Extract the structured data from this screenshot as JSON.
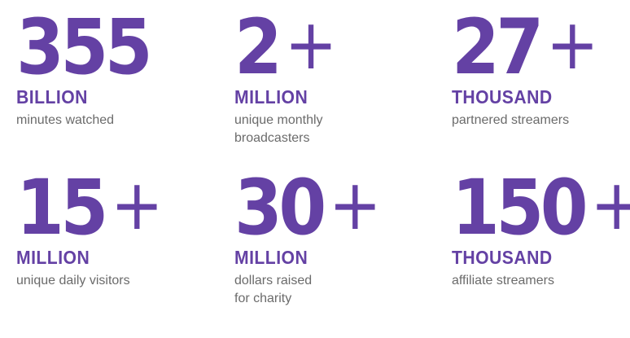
{
  "brand_color": "#6441a4",
  "stats": [
    {
      "number": "355",
      "plus": "",
      "unit": "BILLION",
      "description": "minutes watched"
    },
    {
      "number": "2",
      "plus": "+",
      "unit": "MILLION",
      "description": "unique monthly\nbroadcasters"
    },
    {
      "number": "27",
      "plus": "+",
      "unit": "THOUSAND",
      "description": "partnered streamers"
    },
    {
      "number": "15",
      "plus": "+",
      "unit": "MILLION",
      "description": "unique daily visitors"
    },
    {
      "number": "30",
      "plus": "+",
      "unit": "MILLION",
      "description": "dollars raised\nfor charity"
    },
    {
      "number": "150",
      "plus": "+",
      "unit": "THOUSAND",
      "description": "affiliate streamers"
    }
  ]
}
